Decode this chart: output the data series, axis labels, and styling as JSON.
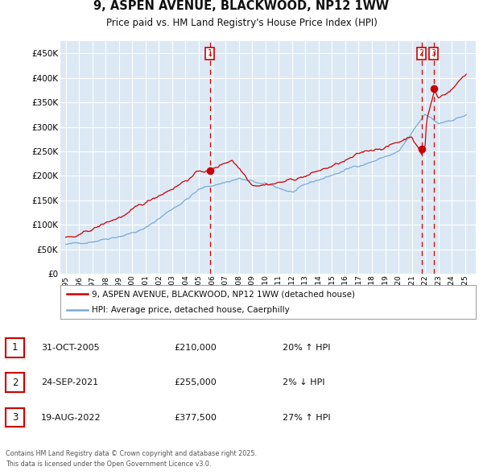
{
  "title": "9, ASPEN AVENUE, BLACKWOOD, NP12 1WW",
  "subtitle": "Price paid vs. HM Land Registry's House Price Index (HPI)",
  "legend_line1": "9, ASPEN AVENUE, BLACKWOOD, NP12 1WW (detached house)",
  "legend_line2": "HPI: Average price, detached house, Caerphilly",
  "footnote_line1": "Contains HM Land Registry data © Crown copyright and database right 2025.",
  "footnote_line2": "This data is licensed under the Open Government Licence v3.0.",
  "table": [
    {
      "num": "1",
      "date": "31-OCT-2005",
      "price": "£210,000",
      "hpi": "20% ↑ HPI"
    },
    {
      "num": "2",
      "date": "24-SEP-2021",
      "price": "£255,000",
      "hpi": "2% ↓ HPI"
    },
    {
      "num": "3",
      "date": "19-AUG-2022",
      "price": "£377,500",
      "hpi": "27% ↑ HPI"
    }
  ],
  "vline_dates": [
    2005.83,
    2021.73,
    2022.63
  ],
  "sale_points_x": [
    2005.83,
    2021.73,
    2022.63
  ],
  "sale_points_y": [
    210000,
    255000,
    377500
  ],
  "ylim": [
    0,
    475000
  ],
  "yticks": [
    0,
    50000,
    100000,
    150000,
    200000,
    250000,
    300000,
    350000,
    400000,
    450000
  ],
  "xlim_lo": 1994.6,
  "xlim_hi": 2025.8,
  "bg_color": "#dce9f5",
  "red_line_color": "#cc0000",
  "blue_line_color": "#7aaad4",
  "vline_color": "#cc0000",
  "grid_color": "#ffffff",
  "box_label_nums": [
    "1",
    "2",
    "3"
  ]
}
